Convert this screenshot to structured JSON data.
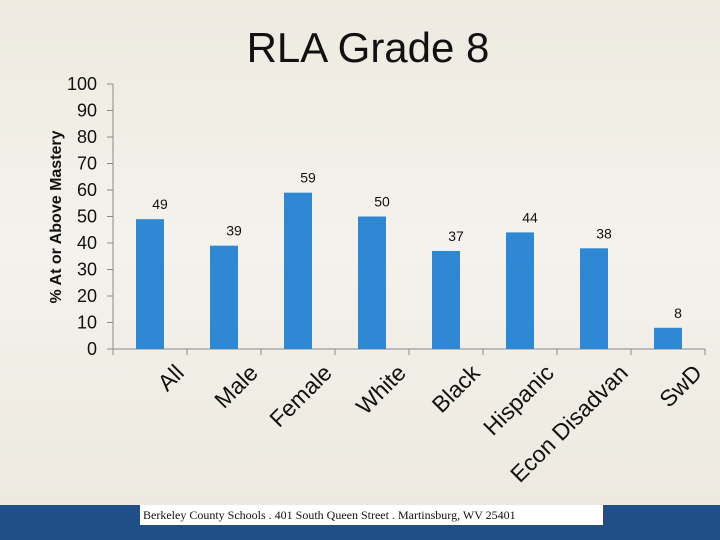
{
  "chart_data": {
    "type": "bar",
    "title": "RLA Grade 8",
    "ylabel": "% At or Above Mastery",
    "xlabel": "",
    "ylim": [
      0,
      100
    ],
    "yticks": [
      "0",
      "10",
      "20",
      "30",
      "40",
      "50",
      "60",
      "70",
      "80",
      "90",
      "100"
    ],
    "categories": [
      "All",
      "Male",
      "Female",
      "White",
      "Black",
      "Hispanic",
      "Econ Disadvan",
      "SwD"
    ],
    "values": [
      49,
      39,
      59,
      50,
      37,
      44,
      38,
      8
    ],
    "data_labels": [
      "49",
      "39",
      "59",
      "50",
      "37",
      "44",
      "38",
      "8"
    ],
    "grid": false,
    "bar_color": "#2f88d4"
  },
  "footer": {
    "text": "Berkeley County Schools . 401 South Queen Street . Martinsburg, WV 25401"
  }
}
